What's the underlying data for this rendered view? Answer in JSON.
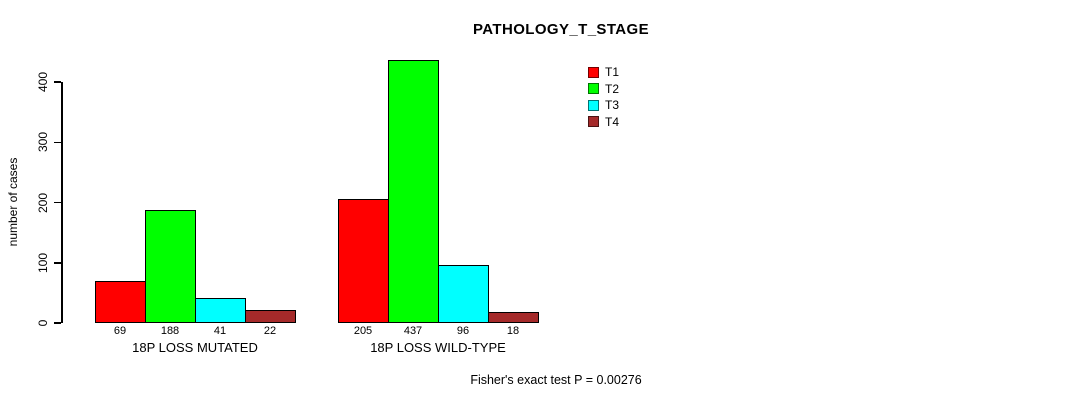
{
  "chart_data": {
    "type": "bar",
    "title": "PATHOLOGY_T_STAGE",
    "ylabel": "number of cases",
    "xlabel": "",
    "ylim": [
      0,
      400
    ],
    "yticks": [
      0,
      100,
      200,
      300,
      400
    ],
    "grid": false,
    "legend_position": "top-right",
    "categories": [
      "18P LOSS MUTATED",
      "18P LOSS WILD-TYPE"
    ],
    "series": [
      {
        "name": "T1",
        "color": "#FF0000",
        "values": [
          69,
          205
        ]
      },
      {
        "name": "T2",
        "color": "#00FF00",
        "values": [
          188,
          437
        ]
      },
      {
        "name": "T3",
        "color": "#00FFFF",
        "values": [
          41,
          96
        ]
      },
      {
        "name": "T4",
        "color": "#A52A2A",
        "values": [
          22,
          18
        ]
      }
    ],
    "bar_value_labels": [
      [
        69,
        188,
        41,
        22
      ],
      [
        205,
        437,
        96,
        18
      ]
    ],
    "annotation": "Fisher's exact test P = 0.00276"
  }
}
